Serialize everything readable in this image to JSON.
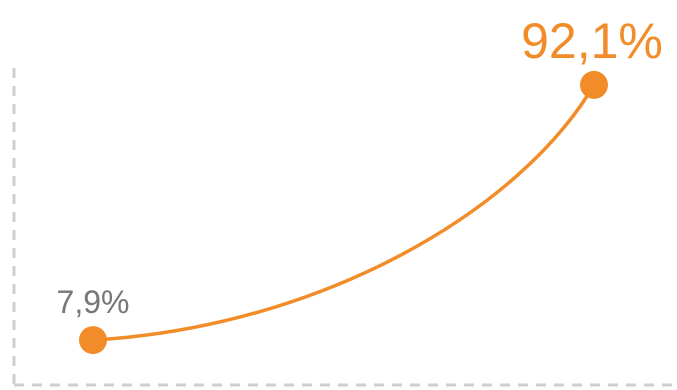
{
  "chart_data": {
    "type": "line",
    "categories": [
      null,
      null
    ],
    "values": [
      7.9,
      92.1
    ],
    "value_labels": [
      "7,9%",
      "92,1%"
    ],
    "color": "#f28c28",
    "ylim": [
      0,
      100
    ]
  }
}
